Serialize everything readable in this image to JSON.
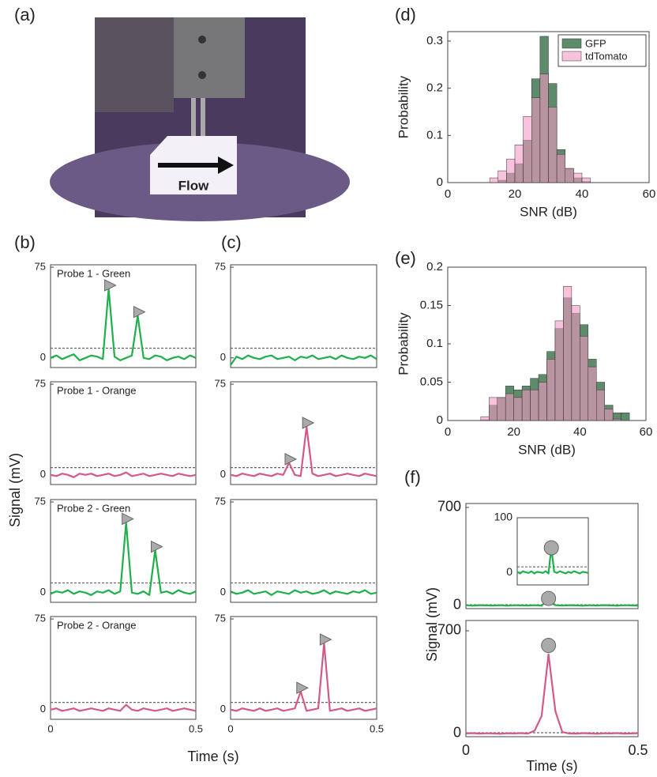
{
  "figure": {
    "labels": {
      "a": "(a)",
      "b": "(b)",
      "c": "(c)",
      "d": "(d)",
      "e": "(e)",
      "f": "(f)",
      "flow": "Flow",
      "bc_ylabel": "Signal (mV)",
      "bc_xlabel": "Time (s)",
      "f_ylabel": "Signal (mV)",
      "f_xlabel": "Time (s)"
    }
  },
  "chart_data": [
    {
      "type": "histogram",
      "xlabel": "SNR (dB)",
      "ylabel": "Probability",
      "bins": [
        12.5,
        15,
        17.5,
        20,
        22.5,
        25,
        27.5,
        30,
        32.5,
        35,
        37.5,
        40,
        42.5
      ],
      "series": [
        {
          "name": "GFP",
          "color": "#5e8c6b",
          "values": [
            0,
            0.005,
            0.02,
            0.04,
            0.09,
            0.22,
            0.31,
            0.21,
            0.07,
            0.03,
            0.01,
            0.002
          ]
        },
        {
          "name": "tdTomato",
          "color": "#f59ac4",
          "values": [
            0.01,
            0.025,
            0.05,
            0.08,
            0.14,
            0.18,
            0.23,
            0.16,
            0.06,
            0.03,
            0.02,
            0.01
          ]
        }
      ],
      "xlim": [
        0,
        60
      ],
      "xticks": [
        0,
        20,
        40,
        60
      ],
      "ylim": [
        0,
        0.32
      ],
      "yticks": [
        0,
        0.1,
        0.2,
        0.3
      ],
      "legend": "top-right"
    },
    {
      "type": "histogram",
      "xlabel": "SNR (dB)",
      "ylabel": "Probability",
      "bins": [
        10,
        12.5,
        15,
        17.5,
        20,
        22.5,
        25,
        27.5,
        30,
        32.5,
        35,
        37.5,
        40,
        42.5,
        45,
        47.5,
        50,
        52.5,
        55
      ],
      "series": [
        {
          "color": "#5e8c6b",
          "values": [
            0.001,
            0.02,
            0.03,
            0.045,
            0.04,
            0.045,
            0.055,
            0.06,
            0.09,
            0.12,
            0.16,
            0.14,
            0.125,
            0.08,
            0.05,
            0.02,
            0.01,
            0.01
          ]
        },
        {
          "color": "#f59ac4",
          "values": [
            0.005,
            0.03,
            0.03,
            0.035,
            0.03,
            0.04,
            0.04,
            0.05,
            0.08,
            0.13,
            0.175,
            0.15,
            0.11,
            0.07,
            0.04,
            0.015,
            0.002,
            0
          ]
        }
      ],
      "xlim": [
        0,
        60
      ],
      "xticks": [
        0,
        20,
        40,
        60
      ],
      "ylim": [
        0,
        0.2
      ],
      "yticks": [
        0,
        0.05,
        0.1,
        0.15,
        0.2
      ]
    },
    {
      "type": "line",
      "title": "Probe 1 - Green",
      "x": [
        0,
        0.02,
        0.04,
        0.06,
        0.08,
        0.1,
        0.12,
        0.14,
        0.16,
        0.18,
        0.2,
        0.22,
        0.24,
        0.26,
        0.28,
        0.3,
        0.32,
        0.34,
        0.36,
        0.38,
        0.4,
        0.42,
        0.44,
        0.46,
        0.48,
        0.5
      ],
      "series": [
        {
          "color": "#1fb04b",
          "values": [
            0,
            2,
            -1,
            1,
            3,
            -2,
            0,
            2,
            1,
            -1,
            57,
            1,
            -2,
            0,
            2,
            35,
            0,
            -1,
            2,
            1,
            -2,
            0,
            1,
            -1,
            2,
            0
          ]
        }
      ],
      "threshold": 8,
      "marker": "triangle",
      "peaks": {
        "x": [
          0.2,
          0.3
        ],
        "values": [
          60,
          38
        ]
      },
      "xlim": [
        0,
        0.5
      ],
      "ylim": [
        -8,
        77
      ],
      "yticks": [
        0,
        75
      ]
    },
    {
      "type": "line",
      "title": "Probe 1 - Orange",
      "x": [
        0,
        0.02,
        0.04,
        0.06,
        0.08,
        0.1,
        0.12,
        0.14,
        0.16,
        0.18,
        0.2,
        0.22,
        0.24,
        0.26,
        0.28,
        0.3,
        0.32,
        0.34,
        0.36,
        0.38,
        0.4,
        0.42,
        0.44,
        0.46,
        0.48,
        0.5
      ],
      "series": [
        {
          "color": "#d4588a",
          "values": [
            0,
            -1,
            1,
            0,
            -2,
            1,
            0,
            1,
            -1,
            0,
            1,
            -1,
            0,
            2,
            -1,
            0,
            1,
            -1,
            0,
            1,
            0,
            -1,
            1,
            0,
            -1,
            0
          ]
        }
      ],
      "threshold": 6,
      "xlim": [
        0,
        0.5
      ],
      "ylim": [
        -8,
        77
      ],
      "yticks": [
        0,
        75
      ]
    },
    {
      "type": "line",
      "title": "Probe 2 - Green",
      "x": [
        0,
        0.02,
        0.04,
        0.06,
        0.08,
        0.1,
        0.12,
        0.14,
        0.16,
        0.18,
        0.2,
        0.22,
        0.24,
        0.26,
        0.28,
        0.3,
        0.32,
        0.34,
        0.36,
        0.38,
        0.4,
        0.42,
        0.44,
        0.46,
        0.48,
        0.5
      ],
      "series": [
        {
          "color": "#1fb04b",
          "values": [
            -1,
            1,
            0,
            2,
            -1,
            1,
            0,
            -2,
            1,
            0,
            2,
            -1,
            1,
            58,
            0,
            -1,
            1,
            -2,
            35,
            0,
            1,
            -1,
            2,
            0,
            -1,
            1
          ]
        }
      ],
      "threshold": 8,
      "marker": "triangle",
      "peaks": {
        "x": [
          0.26,
          0.36
        ],
        "values": [
          61,
          38
        ]
      },
      "xlim": [
        0,
        0.5
      ],
      "ylim": [
        -8,
        77
      ],
      "yticks": [
        0,
        75
      ]
    },
    {
      "type": "line",
      "title": "Probe 2 - Orange",
      "x": [
        0,
        0.02,
        0.04,
        0.06,
        0.08,
        0.1,
        0.12,
        0.14,
        0.16,
        0.18,
        0.2,
        0.22,
        0.24,
        0.26,
        0.28,
        0.3,
        0.32,
        0.34,
        0.36,
        0.38,
        0.4,
        0.42,
        0.44,
        0.46,
        0.48,
        0.5
      ],
      "series": [
        {
          "color": "#d4588a",
          "values": [
            0,
            1,
            -1,
            0,
            1,
            -1,
            0,
            1,
            0,
            -1,
            1,
            0,
            -1,
            4,
            0,
            -1,
            1,
            0,
            -1,
            0,
            1,
            -1,
            0,
            1,
            0,
            -1
          ]
        }
      ],
      "threshold": 6,
      "xlim": [
        0,
        0.5
      ],
      "xticks": [
        0,
        0.5
      ],
      "ylim": [
        -8,
        77
      ],
      "yticks": [
        0,
        75
      ]
    },
    {
      "type": "line",
      "x": [
        0,
        0.02,
        0.04,
        0.06,
        0.08,
        0.1,
        0.12,
        0.14,
        0.16,
        0.18,
        0.2,
        0.22,
        0.24,
        0.26,
        0.28,
        0.3,
        0.32,
        0.34,
        0.36,
        0.38,
        0.4,
        0.42,
        0.44,
        0.46,
        0.48,
        0.5
      ],
      "series": [
        {
          "color": "#1fb04b",
          "values": [
            -6,
            1,
            -1,
            2,
            0,
            -1,
            1,
            2,
            -1,
            0,
            1,
            -2,
            1,
            0,
            2,
            -1,
            0,
            1,
            -1,
            2,
            0,
            -1,
            1,
            0,
            2,
            -1
          ]
        }
      ],
      "threshold": 8,
      "xlim": [
        0,
        0.5
      ],
      "ylim": [
        -8,
        77
      ],
      "yticks": [
        0,
        75
      ]
    },
    {
      "type": "line",
      "x": [
        0,
        0.02,
        0.04,
        0.06,
        0.08,
        0.1,
        0.12,
        0.14,
        0.16,
        0.18,
        0.2,
        0.22,
        0.24,
        0.26,
        0.28,
        0.3,
        0.32,
        0.34,
        0.36,
        0.38,
        0.4,
        0.42,
        0.44,
        0.46,
        0.48,
        0.5
      ],
      "series": [
        {
          "color": "#d4588a",
          "values": [
            0,
            -1,
            1,
            0,
            -1,
            1,
            0,
            -1,
            1,
            0,
            10,
            0,
            -1,
            40,
            1,
            -1,
            0,
            1,
            -1,
            0,
            1,
            0,
            -1,
            1,
            0,
            -1
          ]
        }
      ],
      "threshold": 6,
      "marker": "triangle",
      "peaks": {
        "x": [
          0.2,
          0.26
        ],
        "values": [
          13,
          43
        ]
      },
      "xlim": [
        0,
        0.5
      ],
      "ylim": [
        -8,
        77
      ],
      "yticks": [
        0,
        75
      ]
    },
    {
      "type": "line",
      "x": [
        0,
        0.02,
        0.04,
        0.06,
        0.08,
        0.1,
        0.12,
        0.14,
        0.16,
        0.18,
        0.2,
        0.22,
        0.24,
        0.26,
        0.28,
        0.3,
        0.32,
        0.34,
        0.36,
        0.38,
        0.4,
        0.42,
        0.44,
        0.46,
        0.48,
        0.5
      ],
      "series": [
        {
          "color": "#1fb04b",
          "values": [
            1,
            -1,
            0,
            2,
            -1,
            0,
            1,
            -2,
            1,
            0,
            -1,
            2,
            0,
            1,
            -1,
            0,
            2,
            -1,
            1,
            0,
            -1,
            1,
            0,
            2,
            -1,
            0
          ]
        }
      ],
      "threshold": 8,
      "xlim": [
        0,
        0.5
      ],
      "ylim": [
        -8,
        77
      ],
      "yticks": [
        0,
        75
      ]
    },
    {
      "type": "line",
      "x": [
        0,
        0.02,
        0.04,
        0.06,
        0.08,
        0.1,
        0.12,
        0.14,
        0.16,
        0.18,
        0.2,
        0.22,
        0.24,
        0.26,
        0.28,
        0.3,
        0.32,
        0.34,
        0.36,
        0.38,
        0.4,
        0.42,
        0.44,
        0.46,
        0.48,
        0.5
      ],
      "series": [
        {
          "color": "#d4588a",
          "values": [
            0,
            -1,
            1,
            0,
            -1,
            1,
            -1,
            0,
            1,
            -1,
            0,
            1,
            15,
            -1,
            0,
            1,
            55,
            -1,
            0,
            1,
            -1,
            0,
            1,
            -1,
            0,
            1
          ]
        }
      ],
      "threshold": 6,
      "marker": "triangle",
      "peaks": {
        "x": [
          0.24,
          0.32
        ],
        "values": [
          18,
          58
        ]
      },
      "xlim": [
        0,
        0.5
      ],
      "xticks": [
        0,
        0.5
      ],
      "ylim": [
        -8,
        77
      ],
      "yticks": [
        0,
        75
      ]
    },
    {
      "type": "line",
      "x": [
        0,
        0.02,
        0.04,
        0.06,
        0.08,
        0.1,
        0.12,
        0.14,
        0.16,
        0.18,
        0.2,
        0.22,
        0.24,
        0.26,
        0.28,
        0.3,
        0.32,
        0.34,
        0.36,
        0.38,
        0.4,
        0.42,
        0.44,
        0.46,
        0.48,
        0.5
      ],
      "series": [
        {
          "color": "#1fb04b",
          "values": [
            1,
            -2,
            2,
            0,
            -1,
            2,
            -2,
            1,
            0,
            -1,
            2,
            -2,
            45,
            1,
            -1,
            2,
            0,
            -2,
            1,
            -1,
            2,
            0,
            -2,
            1,
            0,
            -1
          ]
        }
      ],
      "threshold": 5,
      "marker": "circle",
      "peaks": {
        "x": [
          0.24
        ],
        "values": [
          50
        ]
      },
      "xlim": [
        0,
        0.5
      ],
      "ylim": [
        -23,
        728
      ],
      "yticks": [
        0,
        700
      ]
    },
    {
      "type": "line",
      "x": [
        0,
        0.02,
        0.04,
        0.06,
        0.08,
        0.1,
        0.12,
        0.14,
        0.16,
        0.18,
        0.2,
        0.22,
        0.24,
        0.26,
        0.28,
        0.3,
        0.32,
        0.34,
        0.36,
        0.38,
        0.4,
        0.42,
        0.44,
        0.46,
        0.48,
        0.5
      ],
      "series": [
        {
          "color": "#1fb04b",
          "values": [
            1,
            -2,
            2,
            0,
            -1,
            2,
            -2,
            1,
            0,
            -1,
            2,
            -2,
            45,
            1,
            -1,
            2,
            0,
            -2,
            1,
            -1,
            2,
            0,
            -2,
            1,
            0,
            -1
          ]
        }
      ],
      "threshold": 10,
      "marker": "circle",
      "peaks": {
        "x": [
          0.24
        ],
        "values": [
          45
        ]
      },
      "xlim": [
        0,
        0.5
      ],
      "ylim": [
        -23,
        100
      ],
      "yticks": [
        0,
        100
      ]
    },
    {
      "type": "line",
      "x": [
        0,
        0.02,
        0.04,
        0.06,
        0.08,
        0.1,
        0.12,
        0.14,
        0.16,
        0.18,
        0.2,
        0.22,
        0.24,
        0.26,
        0.28,
        0.3,
        0.32,
        0.34,
        0.36,
        0.38,
        0.4,
        0.42,
        0.44,
        0.46,
        0.48,
        0.5
      ],
      "series": [
        {
          "color": "#d4588a",
          "values": [
            0,
            2,
            -1,
            1,
            0,
            -2,
            1,
            0,
            2,
            -1,
            20,
            120,
            540,
            150,
            10,
            0,
            -1,
            2,
            0,
            -2,
            1,
            0,
            2,
            -1,
            0,
            1
          ]
        }
      ],
      "threshold": 5,
      "marker": "circle",
      "peaks": {
        "x": [
          0.24
        ],
        "values": [
          600
        ]
      },
      "xlim": [
        0,
        0.5
      ],
      "xticks": [
        0,
        0.5
      ],
      "ylim": [
        -22,
        770
      ],
      "yticks": [
        0,
        700
      ]
    }
  ]
}
